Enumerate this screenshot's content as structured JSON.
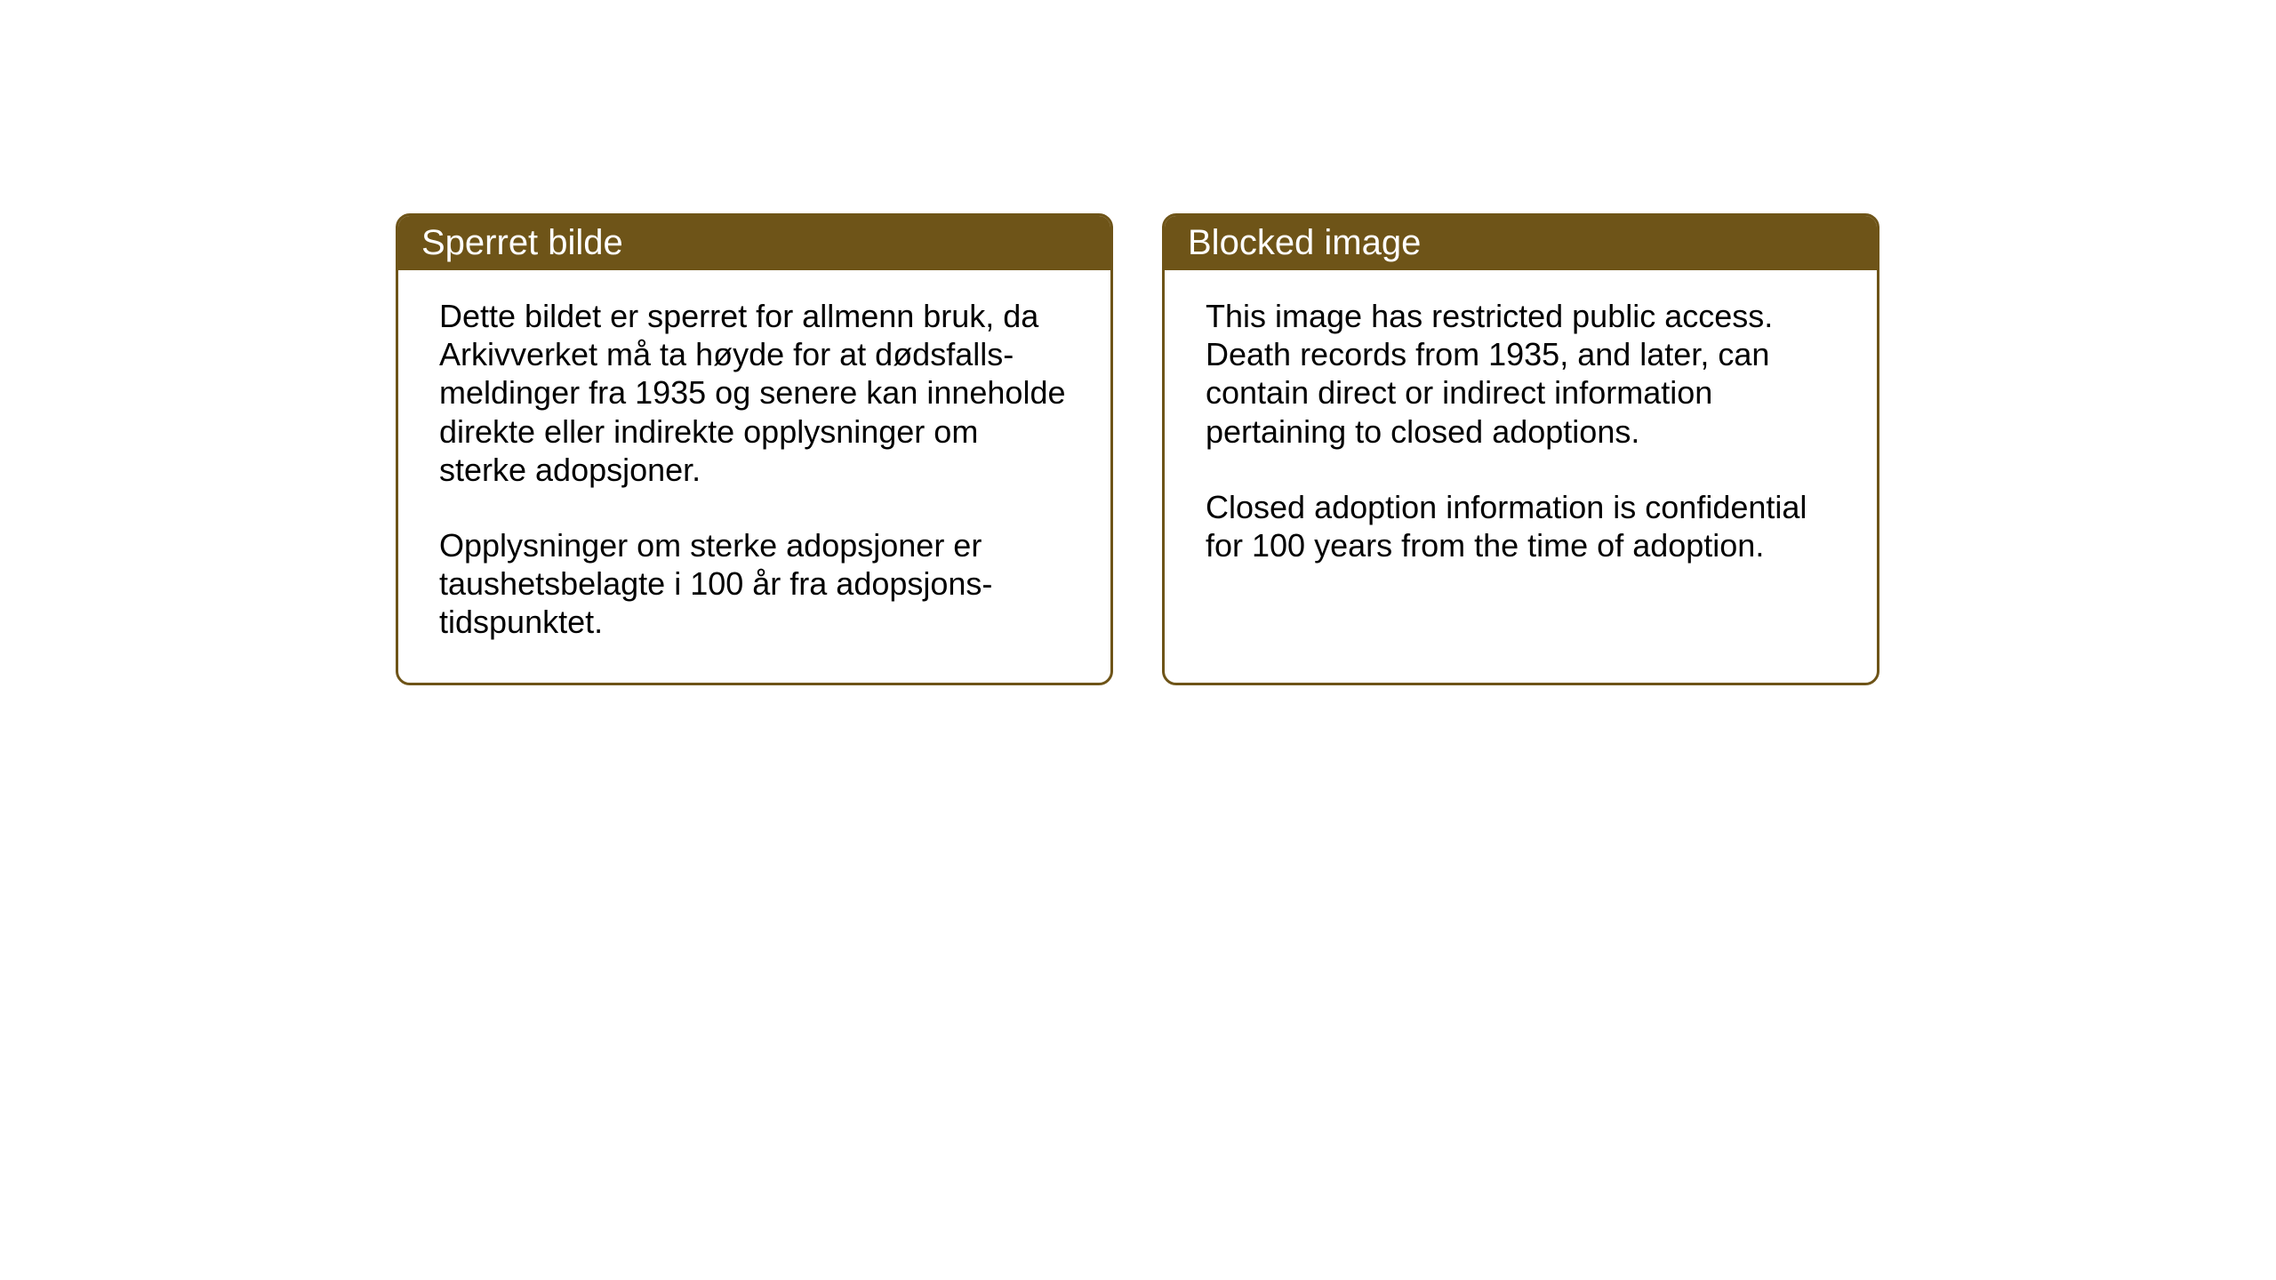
{
  "cards": {
    "norwegian": {
      "title": "Sperret bilde",
      "paragraph1": "Dette bildet er sperret for allmenn bruk, da Arkivverket må ta høyde for at dødsfalls-meldinger fra 1935 og senere kan inneholde direkte eller indirekte opplysninger om sterke adopsjoner.",
      "paragraph2": "Opplysninger om sterke adopsjoner er taushetsbelagte i 100 år fra adopsjons-tidspunktet."
    },
    "english": {
      "title": "Blocked image",
      "paragraph1": "This image has restricted public access. Death records from 1935, and later, can contain direct or indirect information pertaining to closed adoptions.",
      "paragraph2": "Closed adoption information is confidential for 100 years from the time of adoption."
    }
  },
  "styling": {
    "header_background": "#6e5418",
    "header_text_color": "#ffffff",
    "border_color": "#6e5418",
    "body_background": "#ffffff",
    "body_text_color": "#000000",
    "title_fontsize": 40,
    "body_fontsize": 36,
    "border_radius": 16,
    "border_width": 3
  }
}
